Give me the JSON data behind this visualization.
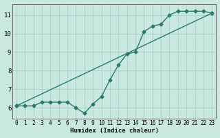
{
  "line1_x": [
    0,
    1,
    2,
    3,
    4,
    5,
    6,
    7,
    8,
    9,
    10,
    11,
    12,
    13,
    14,
    15,
    16,
    17,
    18,
    19,
    20,
    21,
    22,
    23
  ],
  "line1_y": [
    6.1,
    6.1,
    6.1,
    6.3,
    6.3,
    6.3,
    6.3,
    6.0,
    5.7,
    6.2,
    6.6,
    7.5,
    8.3,
    8.9,
    9.0,
    10.1,
    10.4,
    10.5,
    11.0,
    11.2,
    11.2,
    11.2,
    11.2,
    11.1
  ],
  "line2_x": [
    0,
    23
  ],
  "line2_y": [
    6.1,
    11.1
  ],
  "line_color": "#2A7A6A",
  "bg_color": "#C8E8E0",
  "grid_color": "#AACFC8",
  "xlabel": "Humidex (Indice chaleur)",
  "xlim": [
    -0.5,
    23.5
  ],
  "ylim": [
    5.4,
    11.6
  ],
  "xticks": [
    0,
    1,
    2,
    3,
    4,
    5,
    6,
    7,
    8,
    9,
    10,
    11,
    12,
    13,
    14,
    15,
    16,
    17,
    18,
    19,
    20,
    21,
    22,
    23
  ],
  "yticks": [
    6,
    7,
    8,
    9,
    10,
    11
  ],
  "marker": "D",
  "markersize": 2.5,
  "linewidth": 1.0
}
